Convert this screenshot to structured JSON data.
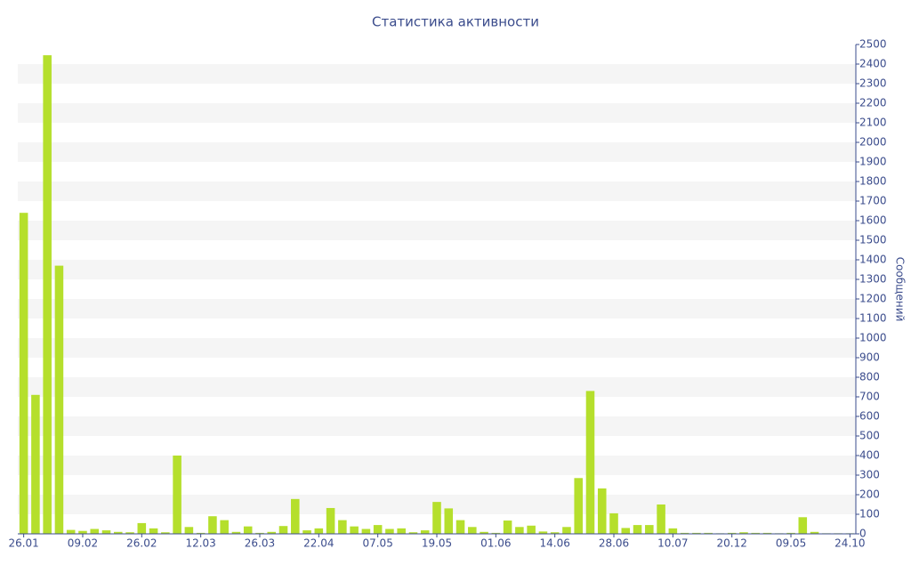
{
  "chart_data": {
    "type": "bar",
    "title": "Статистика активности",
    "y_label": "Сообщений",
    "categories": [
      "26.01",
      null,
      null,
      null,
      null,
      "09.02",
      null,
      null,
      null,
      null,
      "26.02",
      null,
      null,
      null,
      null,
      "12.03",
      null,
      null,
      null,
      null,
      "26.03",
      null,
      null,
      null,
      null,
      "22.04",
      null,
      null,
      null,
      null,
      "07.05",
      null,
      null,
      null,
      null,
      "19.05",
      null,
      null,
      null,
      null,
      "01.06",
      null,
      null,
      null,
      null,
      "14.06",
      null,
      null,
      null,
      null,
      "28.06",
      null,
      null,
      null,
      null,
      "10.07",
      null,
      null,
      null,
      null,
      "20.12",
      null,
      null,
      null,
      null,
      "09.05",
      null,
      null,
      null,
      null,
      "24.10"
    ],
    "values": [
      1640,
      710,
      2445,
      1370,
      20,
      15,
      25,
      18,
      10,
      8,
      55,
      28,
      8,
      400,
      35,
      5,
      90,
      70,
      10,
      38,
      5,
      10,
      40,
      178,
      18,
      28,
      132,
      70,
      38,
      25,
      45,
      25,
      28,
      8,
      18,
      163,
      130,
      70,
      35,
      10,
      5,
      68,
      35,
      42,
      12,
      8,
      35,
      285,
      730,
      232,
      105,
      30,
      45,
      45,
      150,
      28,
      5,
      5,
      5,
      3,
      5,
      8,
      5,
      5,
      3,
      5,
      85,
      10,
      3,
      3,
      3
    ],
    "color": "#b5df2c",
    "band_color": "#f5f5f5",
    "ylim": [
      0,
      2500
    ],
    "yticks": [
      0,
      100,
      200,
      300,
      400,
      500,
      600,
      700,
      800,
      900,
      1000,
      1100,
      1200,
      1300,
      1400,
      1500,
      1600,
      1700,
      1800,
      1900,
      2000,
      2100,
      2200,
      2300,
      2400,
      2500
    ],
    "grid": "banded",
    "y_axis_side": "right"
  }
}
